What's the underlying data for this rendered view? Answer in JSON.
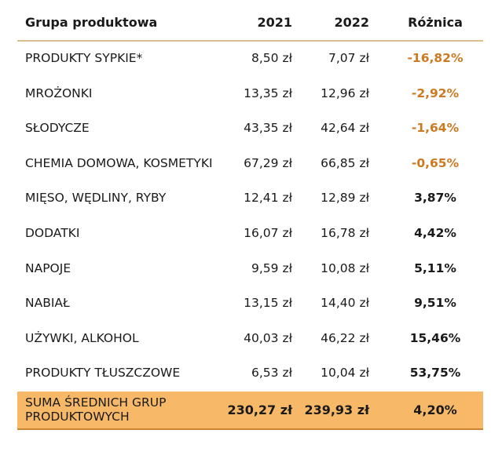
{
  "header": {
    "group": "Grupa produktowa",
    "y2021": "2021",
    "y2022": "2022",
    "diff": "Różnica"
  },
  "rows": [
    {
      "name": "PRODUKTY SYPKIE*",
      "v2021": "8,50 zł",
      "v2022": "7,07 zł",
      "diff": "-16,82%"
    },
    {
      "name": "MROŻONKI",
      "v2021": "13,35 zł",
      "v2022": "12,96 zł",
      "diff": "-2,92%"
    },
    {
      "name": "SŁODYCZE",
      "v2021": "43,35 zł",
      "v2022": "42,64 zł",
      "diff": "-1,64%"
    },
    {
      "name": "CHEMIA DOMOWA, KOSMETYKI",
      "v2021": "67,29 zł",
      "v2022": "66,85 zł",
      "diff": "-0,65%"
    },
    {
      "name": "MIĘSO, WĘDLINY, RYBY",
      "v2021": "12,41 zł",
      "v2022": "12,89 zł",
      "diff": "3,87%"
    },
    {
      "name": "DODATKI",
      "v2021": "16,07 zł",
      "v2022": "16,78 zł",
      "diff": "4,42%"
    },
    {
      "name": "NAPOJE",
      "v2021": "9,59 zł",
      "v2022": "10,08 zł",
      "diff": "5,11%"
    },
    {
      "name": "NABIAŁ",
      "v2021": "13,15 zł",
      "v2022": "14,40 zł",
      "diff": "9,51%"
    },
    {
      "name": "UŻYWKI, ALKOHOL",
      "v2021": "40,03 zł",
      "v2022": "46,22 zł",
      "diff": "15,46%"
    },
    {
      "name": "PRODUKTY TŁUSZCZOWE",
      "v2021": "6,53 zł",
      "v2022": "10,04 zł",
      "diff": "53,75%"
    }
  ],
  "total": {
    "name_line1": "SUMA ŚREDNICH GRUP",
    "name_line2": "PRODUKTOWYCH",
    "v2021": "230,27 zł",
    "v2022": "239,93 zł",
    "diff": "4,20%"
  },
  "colors": {
    "negative": "#cc7a22",
    "total_bg": "#f7b967",
    "header_rule": "#d9c08e"
  }
}
